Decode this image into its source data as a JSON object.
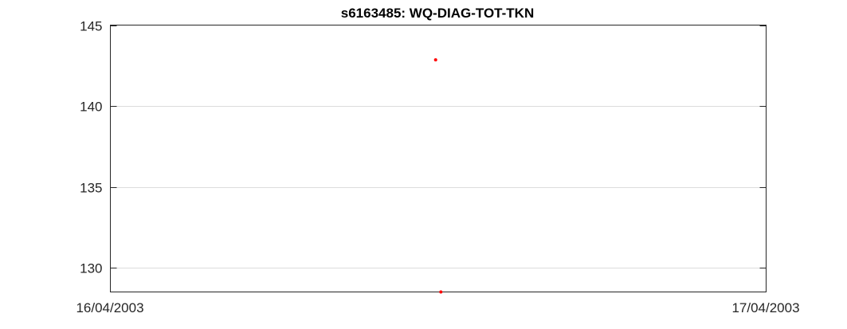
{
  "chart_data": {
    "type": "scatter",
    "title": "s6163485: WQ-DIAG-TOT-TKN",
    "xlabel": "",
    "ylabel": "",
    "x_tick_labels": [
      "16/04/2003",
      "17/04/2003"
    ],
    "x_range_days": [
      0,
      1
    ],
    "ylim": [
      128.5,
      145
    ],
    "y_ticks": [
      130,
      135,
      140,
      145
    ],
    "y_tick_labels": [
      "130",
      "135",
      "140",
      "145"
    ],
    "grid": "horizontal",
    "marker_color": "#ff0000",
    "series": [
      {
        "points": [
          {
            "x": 0.496,
            "y": 142.85
          },
          {
            "x": 0.504,
            "y": 128.5
          }
        ]
      }
    ]
  }
}
